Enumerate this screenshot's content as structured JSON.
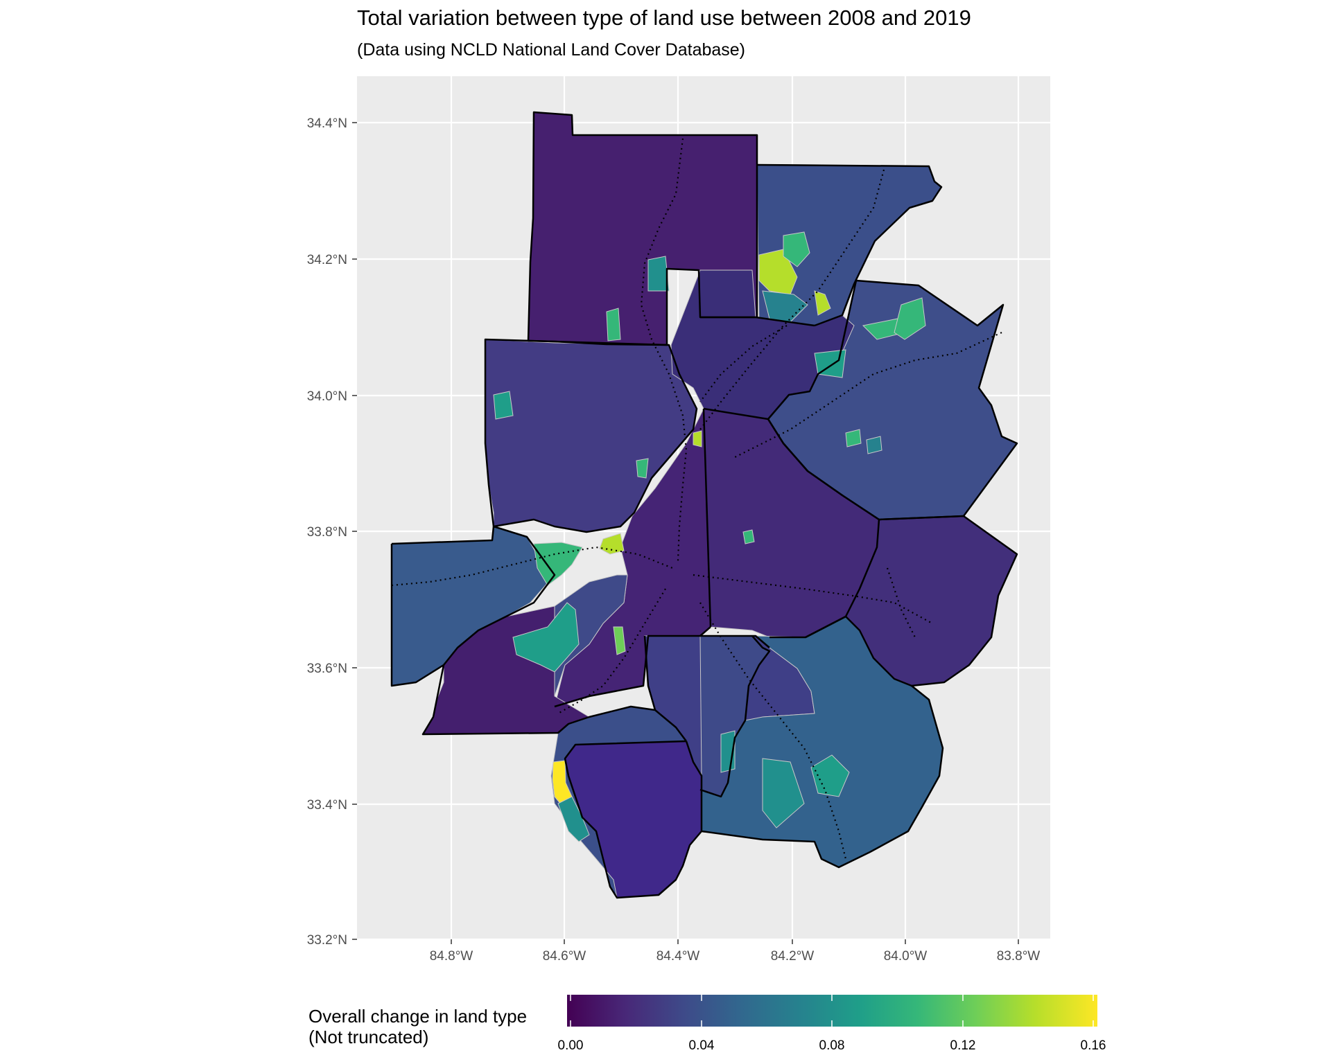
{
  "title": "Total variation between type of land use between 2008 and 2019",
  "subtitle": "(Data using NCLD National Land Cover Database)",
  "map": {
    "projection": "geographic",
    "lat_ticks": [
      "33.2°N",
      "33.4°N",
      "33.6°N",
      "33.8°N",
      "34.0°N",
      "34.2°N",
      "34.4°N"
    ],
    "lat_values": [
      33.2,
      33.4,
      33.6,
      33.8,
      34.0,
      34.2,
      34.4
    ],
    "lon_ticks": [
      "84.8°W",
      "84.6°W",
      "84.4°W",
      "84.2°W",
      "84.0°W",
      "83.8°W"
    ],
    "lon_values": [
      -84.8,
      -84.6,
      -84.4,
      -84.2,
      -84.0,
      -83.8
    ],
    "panel_background": "#ebebeb",
    "grid_color": "#ffffff",
    "boundary_color": "#000000",
    "tract_border_color": "#c8c8c8"
  },
  "legend": {
    "title_line1": "Overall change in land type",
    "title_line2": "(Not truncated)",
    "range": [
      0.0,
      0.163
    ],
    "ticks": [
      "0.00",
      "0.04",
      "0.08",
      "0.12",
      "0.16"
    ],
    "tick_values": [
      0.0,
      0.04,
      0.08,
      0.12,
      0.16
    ],
    "palette": "viridis",
    "stops": [
      "#440154",
      "#482878",
      "#3e4a89",
      "#31688e",
      "#26828e",
      "#1f9e89",
      "#35b779",
      "#6ece58",
      "#b5de2b",
      "#fde725"
    ]
  }
}
